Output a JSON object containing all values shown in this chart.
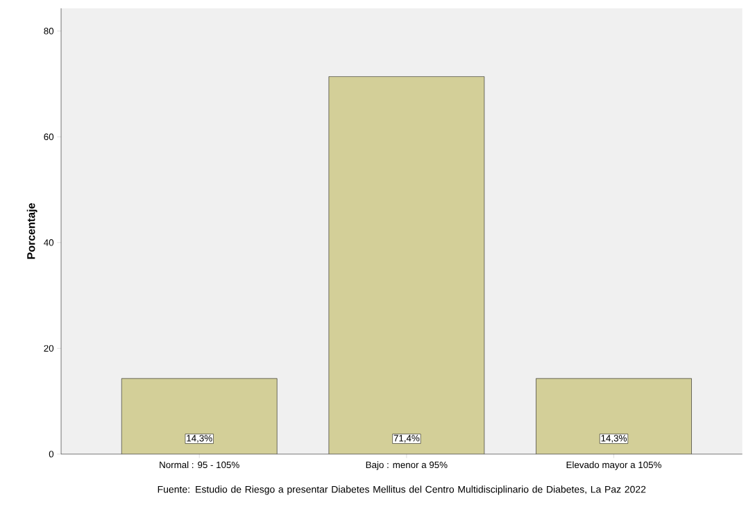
{
  "chart_data": {
    "type": "bar",
    "ylabel": "Porcentaje",
    "categories": [
      "Normal : 95 - 105%",
      "Bajo : menor a 95%",
      "Elevado mayor a 105%"
    ],
    "values": [
      14.3,
      71.4,
      14.3
    ],
    "value_labels": [
      "14,3%",
      "71,4%",
      "14,3%"
    ],
    "color": "#d3cf98",
    "ylim": [
      0,
      84.3
    ],
    "yticks": [
      0,
      20,
      40,
      60,
      80
    ],
    "annotations": [
      "Fuente: Estudio de Riesgo a presentar  Diabetes Mellitus del  Centro Multidisciplinario de Diabetes, La Paz  2022"
    ]
  }
}
